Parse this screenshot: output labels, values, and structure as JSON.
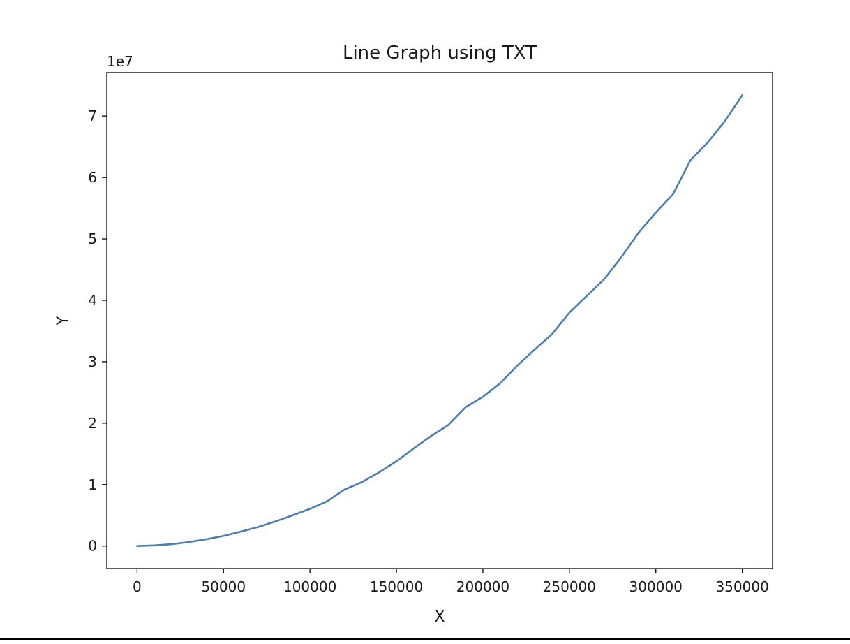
{
  "chart_data": {
    "type": "line",
    "title": "Line Graph using TXT",
    "xlabel": "X",
    "ylabel": "Y",
    "y_offset_label": "1e7",
    "xlim": [
      -17500,
      367500
    ],
    "ylim": [
      -3670000,
      77070000
    ],
    "x_ticks": [
      0,
      50000,
      100000,
      150000,
      200000,
      250000,
      300000,
      350000
    ],
    "x_tick_labels": [
      "0",
      "50000",
      "100000",
      "150000",
      "200000",
      "250000",
      "300000",
      "350000"
    ],
    "y_ticks": [
      0,
      10000000,
      20000000,
      30000000,
      40000000,
      50000000,
      60000000,
      70000000
    ],
    "y_tick_labels": [
      "0",
      "1",
      "2",
      "3",
      "4",
      "5",
      "6",
      "7"
    ],
    "grid": false,
    "series": [
      {
        "color": "#4a7eb3",
        "x": [
          0,
          10000,
          20000,
          30000,
          40000,
          50000,
          60000,
          70000,
          80000,
          90000,
          100000,
          110000,
          120000,
          130000,
          140000,
          150000,
          160000,
          170000,
          180000,
          190000,
          200000,
          210000,
          220000,
          230000,
          240000,
          250000,
          260000,
          270000,
          280000,
          290000,
          300000,
          310000,
          320000,
          330000,
          340000,
          350000
        ],
        "y": [
          0,
          100000,
          300000,
          650000,
          1100000,
          1650000,
          2350000,
          3100000,
          4000000,
          5000000,
          6050000,
          7300000,
          9200000,
          10400000,
          12000000,
          13800000,
          15900000,
          17900000,
          19700000,
          22600000,
          24300000,
          26500000,
          29400000,
          32000000,
          34500000,
          38000000,
          40700000,
          43400000,
          47000000,
          51000000,
          54300000,
          57300000,
          62800000,
          65700000,
          69200000,
          73400000
        ]
      }
    ]
  }
}
